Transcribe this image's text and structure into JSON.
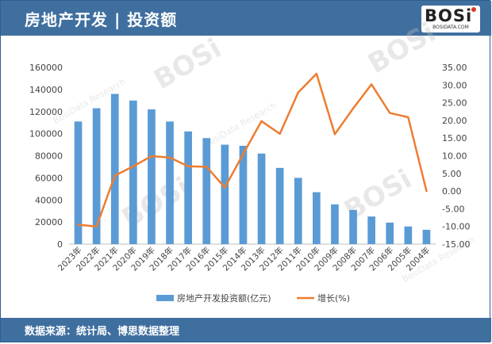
{
  "header": {
    "title": "房地产开发 | 投资额"
  },
  "logo": {
    "main": "BOSi",
    "sub": "BOSIDATA.COM"
  },
  "footer": {
    "source": "数据来源：统计局、博思数据整理"
  },
  "watermark": {
    "brand": "BOSi",
    "sub": "BosiData Research"
  },
  "colors": {
    "bar": "#5b9bd5",
    "line": "#ed7d31",
    "header": "#3f6f9f",
    "axis_text": "#444444"
  },
  "chart_data": {
    "type": "bar",
    "categories": [
      "2023年",
      "2022年",
      "2021年",
      "2020年",
      "2019年",
      "2018年",
      "2017年",
      "2016年",
      "2015年",
      "2014年",
      "2013年",
      "2012年",
      "2011年",
      "2010年",
      "2009年",
      "2008年",
      "2007年",
      "2006年",
      "2005年",
      "2004年"
    ],
    "series": [
      {
        "name": "房地产开发投资额(亿元)",
        "type": "bar",
        "axis": "left",
        "values": [
          111000,
          123000,
          136000,
          130000,
          122000,
          111000,
          102000,
          96000,
          90000,
          89000,
          82000,
          69000,
          60000,
          47000,
          36000,
          31000,
          25000,
          19500,
          16000,
          13000
        ]
      },
      {
        "name": "增长(%)",
        "type": "line",
        "axis": "right",
        "values": [
          -9.5,
          -10.0,
          4.4,
          7.0,
          9.9,
          9.5,
          7.0,
          6.9,
          1.0,
          10.5,
          19.8,
          16.2,
          27.9,
          33.2,
          16.1,
          23.4,
          30.2,
          22.1,
          20.9,
          0.0
        ]
      }
    ],
    "y_left": {
      "min": 0,
      "max": 160000,
      "ticks": [
        "0",
        "20000",
        "40000",
        "60000",
        "80000",
        "100000",
        "120000",
        "140000",
        "160000"
      ]
    },
    "y_right": {
      "min": -15,
      "max": 35,
      "ticks": [
        "-15.00",
        "-10.00",
        "-5.00",
        "0.00",
        "5.00",
        "10.00",
        "15.00",
        "20.00",
        "25.00",
        "30.00",
        "35.00"
      ]
    },
    "legend_position": "bottom",
    "grid": false
  }
}
